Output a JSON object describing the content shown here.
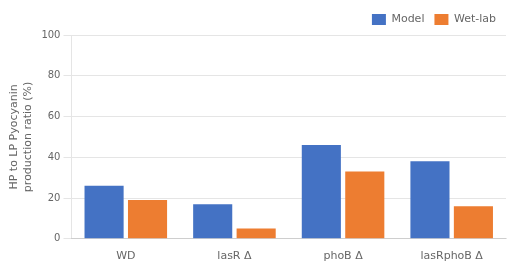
{
  "chart_data": {
    "type": "bar",
    "categories": [
      "WD",
      "lasR Δ",
      "phoB Δ",
      "lasRphoB Δ"
    ],
    "series": [
      {
        "name": "Model",
        "color": "#4472C4",
        "values": [
          26,
          17,
          46,
          38
        ]
      },
      {
        "name": "Wet-lab",
        "color": "#ED7D31",
        "values": [
          19,
          5,
          33,
          16
        ]
      }
    ],
    "ylabel": "HP to LP Pyocyanin\nproduction ratio (%)",
    "ylim": [
      0,
      100
    ],
    "yticks": [
      0,
      20,
      40,
      60,
      80,
      100
    ],
    "grid": true,
    "legend": "upper right"
  }
}
